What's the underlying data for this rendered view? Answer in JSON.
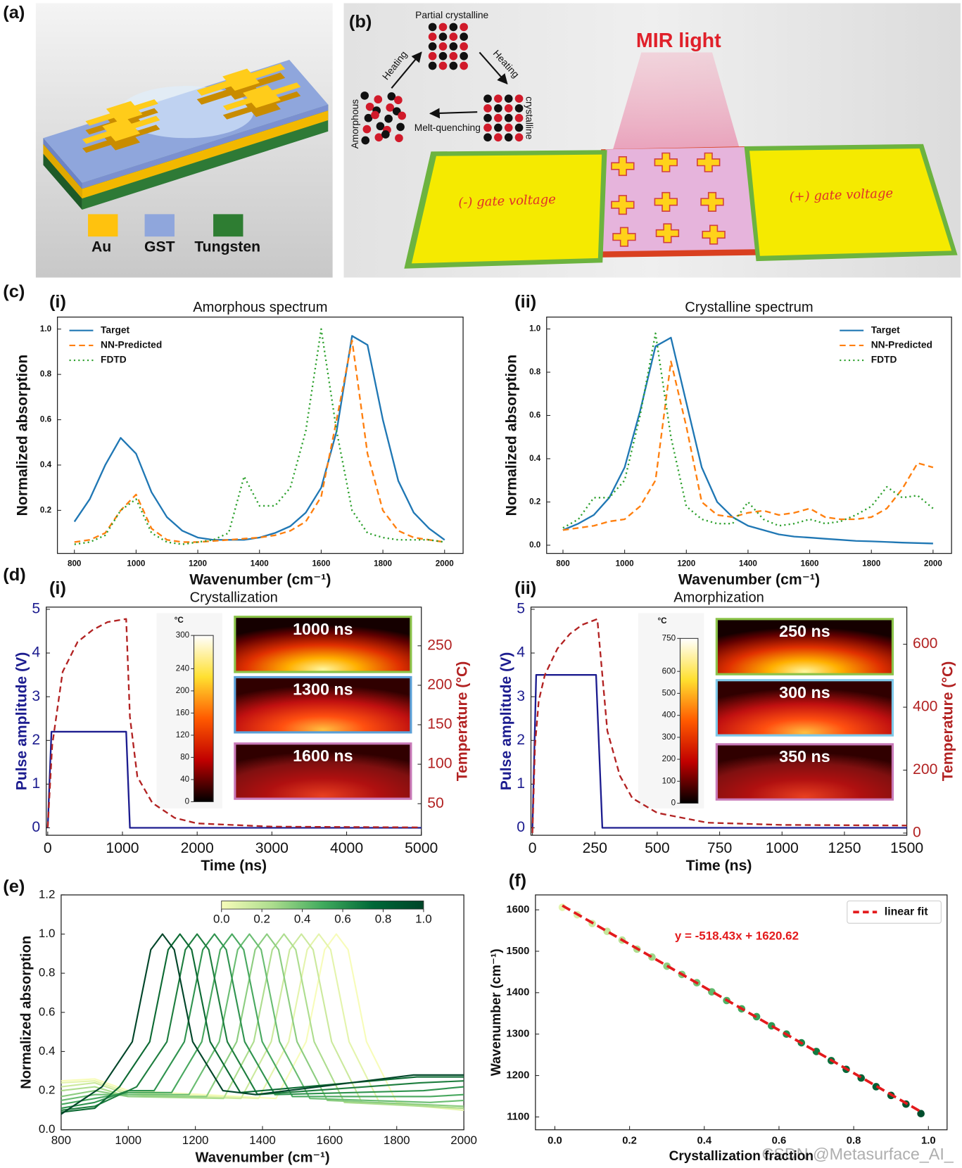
{
  "panels": [
    "(a)",
    "(b)",
    "(c)",
    "(d)",
    "(e)",
    "(f)"
  ],
  "panel_a": {
    "legend": [
      "Au",
      "GST",
      "Tungsten"
    ]
  },
  "panel_b": {
    "phase_labels": {
      "top": "Partial crystalline",
      "heating_left": "Heating",
      "heating_right": "Heating",
      "left": "Amorphous",
      "bottom": "Melt-quenching",
      "right": "crystalline"
    },
    "light": "MIR light",
    "left_pad": "(-) gate voltage",
    "right_pad": "(+) gate voltage"
  },
  "watermark": "CSDN @Metasurface_AI_",
  "chart_data": [
    {
      "type": "line",
      "sublabel": "(i)",
      "title": "Amorphous spectrum",
      "xlabel": "Wavenumber (cm⁻¹)",
      "ylabel": "Normalized absorption",
      "x": [
        800,
        850,
        900,
        950,
        1000,
        1050,
        1100,
        1150,
        1200,
        1250,
        1300,
        1350,
        1400,
        1450,
        1500,
        1550,
        1600,
        1650,
        1700,
        1750,
        1800,
        1850,
        1900,
        1950,
        2000
      ],
      "series": [
        {
          "name": "Target",
          "color": "#1f77b4",
          "linestyle": "solid",
          "values": [
            0.15,
            0.25,
            0.4,
            0.52,
            0.45,
            0.28,
            0.17,
            0.11,
            0.08,
            0.07,
            0.07,
            0.07,
            0.08,
            0.1,
            0.13,
            0.19,
            0.3,
            0.55,
            0.97,
            0.93,
            0.6,
            0.33,
            0.19,
            0.12,
            0.07
          ]
        },
        {
          "name": "NN-Predicted",
          "color": "#ff7f0e",
          "linestyle": "dashed",
          "values": [
            0.06,
            0.07,
            0.1,
            0.2,
            0.27,
            0.12,
            0.07,
            0.06,
            0.06,
            0.065,
            0.07,
            0.075,
            0.08,
            0.09,
            0.11,
            0.15,
            0.26,
            0.6,
            0.95,
            0.45,
            0.2,
            0.11,
            0.08,
            0.07,
            0.06
          ]
        },
        {
          "name": "FDTD",
          "color": "#2ca02c",
          "linestyle": "dotted",
          "values": [
            0.05,
            0.06,
            0.09,
            0.2,
            0.25,
            0.1,
            0.06,
            0.05,
            0.06,
            0.07,
            0.1,
            0.35,
            0.22,
            0.22,
            0.3,
            0.55,
            1.0,
            0.55,
            0.2,
            0.1,
            0.08,
            0.07,
            0.07,
            0.07,
            0.06
          ]
        }
      ],
      "xlim": [
        745,
        2060
      ],
      "xticks": [
        800,
        1000,
        1200,
        1400,
        1600,
        1800,
        2000
      ],
      "ylim": [
        0.01,
        1.053
      ],
      "yticks": [
        0.2,
        0.4,
        0.6,
        0.8,
        {
          "value": 1,
          "label": "1.0"
        }
      ],
      "legend": "upper left"
    },
    {
      "type": "line",
      "sublabel": "(ii)",
      "title": "Crystalline spectrum",
      "xlabel": "Wavenumber (cm⁻¹)",
      "ylabel": "Normalized absorption",
      "x": [
        800,
        850,
        900,
        950,
        1000,
        1050,
        1100,
        1150,
        1200,
        1250,
        1300,
        1350,
        1400,
        1450,
        1500,
        1550,
        1600,
        1650,
        1700,
        1750,
        1800,
        1850,
        1900,
        1950,
        2000
      ],
      "series": [
        {
          "name": "Target",
          "color": "#1f77b4",
          "linestyle": "solid",
          "values": [
            0.07,
            0.1,
            0.14,
            0.22,
            0.36,
            0.62,
            0.92,
            0.96,
            0.66,
            0.36,
            0.2,
            0.13,
            0.09,
            0.07,
            0.05,
            0.04,
            0.035,
            0.03,
            0.025,
            0.02,
            0.018,
            0.015,
            0.012,
            0.01,
            0.008
          ]
        },
        {
          "name": "NN-Predicted",
          "color": "#ff7f0e",
          "linestyle": "dashed",
          "values": [
            0.07,
            0.08,
            0.09,
            0.11,
            0.12,
            0.18,
            0.3,
            0.85,
            0.55,
            0.2,
            0.14,
            0.13,
            0.15,
            0.16,
            0.14,
            0.15,
            0.17,
            0.13,
            0.12,
            0.12,
            0.13,
            0.17,
            0.26,
            0.38,
            0.36
          ]
        },
        {
          "name": "FDTD",
          "color": "#2ca02c",
          "linestyle": "dotted",
          "values": [
            0.08,
            0.12,
            0.22,
            0.22,
            0.3,
            0.6,
            0.98,
            0.5,
            0.18,
            0.12,
            0.1,
            0.1,
            0.2,
            0.12,
            0.09,
            0.1,
            0.12,
            0.1,
            0.11,
            0.14,
            0.18,
            0.27,
            0.22,
            0.23,
            0.17
          ]
        }
      ],
      "xlim": [
        747,
        2060
      ],
      "xticks": [
        800,
        1000,
        1200,
        1400,
        1600,
        1800,
        2000
      ],
      "ylim": [
        -0.038,
        1.055
      ],
      "yticks": [
        {
          "value": 0,
          "label": "0.0"
        },
        0.2,
        0.4,
        0.6,
        0.8,
        {
          "value": 1,
          "label": "1.0"
        }
      ],
      "legend": "upper right"
    },
    {
      "type": "line",
      "sublabel": "(i)",
      "title": "Crystallization",
      "xlabel": "Time (ns)",
      "ylabel": "Pulse amplitude (V)",
      "y2label": "Temperature (°C)",
      "series": [
        {
          "color": "#1c1c8f",
          "linestyle": "solid",
          "x": [
            0,
            50,
            1050,
            1100,
            5000
          ],
          "values": [
            0,
            2.2,
            2.2,
            0,
            0
          ]
        },
        {
          "color": "#b22222",
          "linestyle": "dashed",
          "axis": "y2",
          "x": [
            0,
            60,
            200,
            400,
            600,
            800,
            1050,
            1100,
            1200,
            1400,
            1700,
            2000,
            3000,
            5000
          ],
          "values": [
            20,
            124,
            217,
            255,
            270,
            280,
            284,
            160,
            84,
            51,
            32,
            25,
            21,
            20
          ]
        }
      ],
      "xlim": [
        -20,
        5000
      ],
      "xticks": [
        0,
        1000,
        2000,
        3000,
        4000,
        5000
      ],
      "ylim": [
        -0.17,
        5.05
      ],
      "yticks": [
        0,
        1,
        2,
        3,
        4,
        5
      ],
      "y2lim": [
        10,
        299
      ],
      "y2ticks": [
        50,
        100,
        150,
        200,
        250
      ],
      "inset": {
        "unit": "°C",
        "clim": [
          0,
          300
        ],
        "cticks": [
          0,
          40,
          80,
          120,
          160,
          200,
          240,
          300
        ],
        "frames": [
          {
            "label": "1000 ns",
            "border": "#8bc34a"
          },
          {
            "label": "1300 ns",
            "border": "#5aa0d8"
          },
          {
            "label": "1600 ns",
            "border": "#c879b8"
          }
        ]
      }
    },
    {
      "type": "line",
      "sublabel": "(ii)",
      "title": "Amorphization",
      "xlabel": "Time (ns)",
      "ylabel": "Pulse amplitude (V)",
      "y2label": "Temperature (°C)",
      "series": [
        {
          "color": "#1c1c8f",
          "linestyle": "solid",
          "x": [
            0,
            15,
            255,
            280,
            1500
          ],
          "values": [
            0,
            3.5,
            3.5,
            0,
            0
          ]
        },
        {
          "color": "#b22222",
          "linestyle": "dashed",
          "axis": "y2",
          "x": [
            0,
            10,
            25,
            50,
            100,
            150,
            200,
            260,
            300,
            350,
            400,
            500,
            700,
            1000,
            1500
          ],
          "values": [
            0,
            277,
            420,
            503,
            586,
            633,
            662,
            680,
            325,
            183,
            111,
            64,
            33,
            26,
            24
          ]
        }
      ],
      "xlim": [
        -6,
        1500
      ],
      "xticks": [
        0,
        250,
        500,
        750,
        1000,
        1250,
        1500
      ],
      "ylim": [
        -0.17,
        5.05
      ],
      "yticks": [
        0,
        1,
        2,
        3,
        4,
        5
      ],
      "y2lim": [
        -7,
        718
      ],
      "y2ticks": [
        0,
        200,
        400,
        600
      ],
      "inset": {
        "unit": "°C",
        "clim": [
          0,
          750
        ],
        "cticks": [
          0,
          100,
          200,
          300,
          400,
          500,
          600,
          750
        ],
        "frames": [
          {
            "label": "250 ns",
            "border": "#8bc34a"
          },
          {
            "label": "300 ns",
            "border": "#7ec8e8"
          },
          {
            "label": "350 ns",
            "border": "#c879b8"
          }
        ]
      }
    },
    {
      "type": "line",
      "xlabel": "Wavenumber (cm⁻¹)",
      "ylabel": "Normalized absorption",
      "series": [
        {
          "color": "#f7fcb9",
          "x": [
            800,
            900,
            1000,
            1440,
            1530,
            1585,
            1620,
            1655,
            1710,
            1800,
            2000
          ],
          "values": [
            0.25,
            0.26,
            0.2,
            0.16,
            0.45,
            0.92,
            1.0,
            0.92,
            0.45,
            0.14,
            0.1
          ]
        },
        {
          "color": "#e4f4ac",
          "x": [
            800,
            900,
            1000,
            1388,
            1478,
            1533,
            1568,
            1603,
            1658,
            1748,
            2000
          ],
          "values": [
            0.24,
            0.25,
            0.19,
            0.16,
            0.45,
            0.92,
            1.0,
            0.92,
            0.45,
            0.14,
            0.1
          ]
        },
        {
          "color": "#cbe99d",
          "x": [
            800,
            900,
            1000,
            1336,
            1426,
            1481,
            1516,
            1551,
            1606,
            1696,
            2000
          ],
          "values": [
            0.22,
            0.24,
            0.18,
            0.16,
            0.45,
            0.92,
            1.0,
            0.92,
            0.45,
            0.14,
            0.11
          ]
        },
        {
          "color": "#addd8e",
          "x": [
            800,
            900,
            1000,
            1284,
            1374,
            1429,
            1464,
            1499,
            1554,
            1644,
            2000
          ],
          "values": [
            0.2,
            0.22,
            0.17,
            0.16,
            0.45,
            0.92,
            1.0,
            0.92,
            0.45,
            0.14,
            0.11
          ]
        },
        {
          "color": "#8ccd80",
          "x": [
            800,
            900,
            1000,
            1233,
            1323,
            1378,
            1413,
            1448,
            1503,
            1593,
            2000
          ],
          "values": [
            0.17,
            0.2,
            0.17,
            0.17,
            0.45,
            0.92,
            1.0,
            0.92,
            0.45,
            0.15,
            0.12
          ]
        },
        {
          "color": "#6abd72",
          "x": [
            800,
            900,
            1000,
            1181,
            1271,
            1326,
            1361,
            1396,
            1451,
            1541,
            1900,
            2000
          ],
          "values": [
            0.15,
            0.18,
            0.18,
            0.18,
            0.45,
            0.92,
            1.0,
            0.92,
            0.45,
            0.16,
            0.14,
            0.15
          ]
        },
        {
          "color": "#48a85f",
          "x": [
            800,
            900,
            1000,
            1129,
            1219,
            1274,
            1309,
            1344,
            1399,
            1489,
            1900,
            2000
          ],
          "values": [
            0.13,
            0.16,
            0.19,
            0.19,
            0.45,
            0.92,
            1.0,
            0.92,
            0.45,
            0.17,
            0.17,
            0.18
          ]
        },
        {
          "color": "#2f934f",
          "x": [
            800,
            900,
            1000,
            1077,
            1167,
            1222,
            1257,
            1292,
            1347,
            1437,
            1880,
            2000
          ],
          "values": [
            0.11,
            0.14,
            0.2,
            0.2,
            0.45,
            0.92,
            1.0,
            0.92,
            0.45,
            0.18,
            0.2,
            0.22
          ]
        },
        {
          "color": "#1e7e3f",
          "x": [
            800,
            900,
            1025,
            1115,
            1170,
            1205,
            1240,
            1295,
            1385,
            1870,
            2000
          ],
          "values": [
            0.1,
            0.12,
            0.22,
            0.45,
            0.92,
            1.0,
            0.92,
            0.45,
            0.18,
            0.24,
            0.25
          ]
        },
        {
          "color": "#0c6a33",
          "x": [
            800,
            900,
            974,
            1064,
            1119,
            1154,
            1189,
            1244,
            1334,
            1860,
            2000
          ],
          "values": [
            0.09,
            0.11,
            0.22,
            0.45,
            0.92,
            1.0,
            0.92,
            0.45,
            0.19,
            0.27,
            0.27
          ]
        },
        {
          "color": "#004529",
          "x": [
            800,
            922,
            1012,
            1067,
            1102,
            1137,
            1192,
            1282,
            1380,
            1850,
            2000
          ],
          "values": [
            0.08,
            0.22,
            0.45,
            0.92,
            1.0,
            0.92,
            0.45,
            0.2,
            0.18,
            0.28,
            0.28
          ]
        }
      ],
      "xlim": [
        800,
        2000
      ],
      "xticks": [
        800,
        1000,
        1200,
        1400,
        1600,
        1800,
        2000
      ],
      "ylim": [
        0,
        1.2
      ],
      "yticks": [
        {
          "value": 0,
          "label": "0.0"
        },
        0.2,
        0.4,
        0.6,
        0.8,
        {
          "value": 1,
          "label": "1.0"
        },
        1.2
      ],
      "colorbar": {
        "lim": [
          0,
          1
        ],
        "colors": [
          "#f7fcb9",
          "#addd8e",
          "#41ab5d",
          "#006837",
          "#004529"
        ],
        "ticks": [
          {
            "value": 0,
            "label": "0.0"
          },
          0.2,
          0.4,
          0.6,
          0.8,
          {
            "value": 1,
            "label": "1.0"
          }
        ]
      }
    },
    {
      "type": "scatter",
      "xlabel": "Crystallization fraction",
      "ylabel": "Wavenumber (cm⁻¹)",
      "x": [
        0.02,
        0.06,
        0.1,
        0.14,
        0.18,
        0.22,
        0.26,
        0.3,
        0.34,
        0.38,
        0.42,
        0.46,
        0.5,
        0.54,
        0.58,
        0.62,
        0.66,
        0.7,
        0.74,
        0.78,
        0.82,
        0.86,
        0.9,
        0.94,
        0.98
      ],
      "values": [
        1606,
        1588,
        1567,
        1548,
        1527,
        1505,
        1486,
        1464,
        1444,
        1424,
        1402,
        1381,
        1361,
        1342,
        1320,
        1300,
        1279,
        1258,
        1236,
        1215,
        1194,
        1173,
        1152,
        1131,
        1108
      ],
      "cmap": [
        "#f7fcb9",
        "#addd8e",
        "#41ab5d",
        "#006837",
        "#004529"
      ],
      "fit": {
        "name": "linear fit",
        "slope": -518.43,
        "intercept": 1620.62,
        "color": "#e31a1c",
        "equation": "y = -518.43x + 1620.62"
      },
      "xlim": [
        -0.052,
        1.05
      ],
      "xticks": [
        {
          "value": 0,
          "label": "0.0"
        },
        0.2,
        0.4,
        0.6,
        0.8,
        {
          "value": 1,
          "label": "1.0"
        }
      ],
      "ylim": [
        1069,
        1636
      ],
      "yticks": [
        1100,
        1200,
        1300,
        1400,
        1500,
        1600
      ],
      "legend": "upper right"
    }
  ]
}
